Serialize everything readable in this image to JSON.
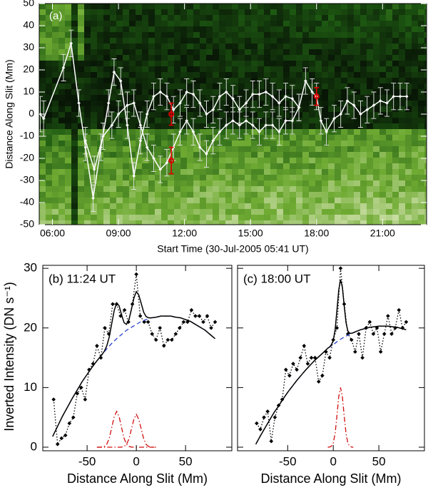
{
  "chart_data": [
    {
      "type": "line",
      "annotation": "(a)",
      "x_label": "Start Time (30-Jul-2005 05:41 UT)",
      "y_label": "Distance Along Slit (Mm)",
      "xlim": [
        5.4,
        23.0
      ],
      "ylim": [
        -50,
        50
      ],
      "xticks": [
        {
          "value": 6,
          "label": "06:00"
        },
        {
          "value": 9,
          "label": "09:00"
        },
        {
          "value": 12,
          "label": "12:00"
        },
        {
          "value": 15,
          "label": "15:00"
        },
        {
          "value": 18,
          "label": "18:00"
        },
        {
          "value": 21,
          "label": "21:00"
        }
      ],
      "yticks": [
        -50,
        -40,
        -30,
        -20,
        -10,
        0,
        10,
        20,
        30,
        40,
        50
      ],
      "series": [
        {
          "color": "#ffffff",
          "marker": "diamond",
          "line": "solid",
          "x": [
            5.45,
            5.6,
            6.5,
            6.85,
            7.2,
            7.5,
            7.85,
            8.2,
            8.55,
            8.8,
            9.1,
            9.4,
            9.7,
            10.0,
            10.3,
            10.6,
            10.9,
            11.2,
            11.5,
            11.8,
            12.1,
            12.4,
            12.7,
            13.0,
            13.3,
            13.6,
            13.9,
            14.2,
            14.5,
            14.8,
            15.1,
            15.4,
            15.7,
            16.0,
            16.3,
            16.6,
            16.9,
            17.2,
            17.5,
            17.8,
            18.0,
            18.2,
            18.45,
            18.8,
            19.1,
            19.4,
            19.7,
            20.0,
            20.3,
            20.6,
            20.9,
            21.2,
            21.5,
            21.8,
            22.1
          ],
          "values": [
            0,
            -2,
            21,
            32,
            5,
            -15,
            -38,
            -15,
            5,
            19,
            15,
            -5,
            -28,
            -12,
            0,
            8,
            10,
            8,
            2,
            5,
            10,
            9,
            5,
            0,
            2,
            8,
            10,
            7,
            2,
            5,
            9,
            9,
            10,
            8,
            5,
            8,
            7,
            3,
            15,
            10,
            8,
            -3,
            -8,
            -2,
            0,
            6,
            4,
            0,
            2,
            4,
            6,
            5,
            8,
            8,
            8
          ],
          "errors": [
            8,
            8,
            6,
            6,
            6,
            6,
            6,
            6,
            6,
            6,
            6,
            6,
            6,
            6,
            6,
            6,
            6,
            6,
            6,
            6,
            6,
            6,
            6,
            6,
            6,
            6,
            6,
            6,
            6,
            6,
            6,
            6,
            6,
            6,
            6,
            6,
            6,
            6,
            6,
            6,
            6,
            6,
            6,
            6,
            6,
            6,
            6,
            6,
            6,
            6,
            6,
            6,
            6,
            6,
            6
          ]
        },
        {
          "color": "#ffffff",
          "marker": "diamond",
          "line": "solid",
          "x": [
            7.5,
            7.9,
            8.3,
            8.7,
            9.0,
            9.4,
            9.7,
            10.0,
            10.3,
            10.6,
            10.9,
            11.2,
            11.5,
            11.8,
            12.1,
            12.4,
            12.7,
            13.0,
            13.3,
            13.6,
            13.9,
            14.2,
            14.5,
            14.8,
            15.1,
            15.4,
            15.7,
            16.0,
            16.3,
            16.6,
            16.9,
            17.2
          ],
          "values": [
            -12,
            -25,
            -10,
            -5,
            0,
            4,
            5,
            -5,
            -15,
            -20,
            -25,
            -22,
            -15,
            -8,
            -3,
            -8,
            -15,
            -18,
            -12,
            -8,
            -5,
            -3,
            -5,
            -3,
            -5,
            -8,
            -5,
            -5,
            -8,
            -3,
            -3,
            3
          ],
          "errors": [
            6,
            6,
            6,
            6,
            6,
            6,
            6,
            6,
            6,
            6,
            6,
            6,
            6,
            6,
            6,
            6,
            6,
            6,
            6,
            6,
            6,
            6,
            6,
            6,
            6,
            6,
            6,
            6,
            6,
            6,
            6,
            6
          ]
        },
        {
          "color": "#e00000",
          "marker": "circle",
          "line": "none",
          "x": [
            11.4,
            11.4,
            18.0
          ],
          "values": [
            0,
            -21,
            8
          ],
          "errors": [
            5,
            6,
            4
          ]
        }
      ]
    },
    {
      "type": "line",
      "annotation": "(b) 11:24 UT",
      "x_label": "Distance Along Slit (Mm)",
      "y_label": "Inverted Intensity (DN s⁻¹)",
      "xlim": [
        -95,
        97
      ],
      "ylim": [
        -0.6,
        30.5
      ],
      "xticks": [
        -50,
        0,
        50
      ],
      "yticks": [
        0,
        10,
        20,
        30
      ],
      "series": [
        {
          "color": "#000000",
          "marker": "diamond",
          "line": "dotted",
          "x": [
            -84,
            -80,
            -76,
            -72,
            -68,
            -64,
            -60,
            -56,
            -52,
            -48,
            -44,
            -40,
            -36,
            -32,
            -28,
            -24,
            -20,
            -16,
            -12,
            -8,
            -4,
            0,
            4,
            8,
            12,
            16,
            20,
            24,
            28,
            32,
            36,
            40,
            44,
            48,
            52,
            56,
            60,
            64,
            68,
            72,
            76,
            80
          ],
          "values": [
            8,
            0.5,
            1.5,
            2,
            4,
            5,
            9,
            10,
            8,
            13,
            14,
            17,
            15,
            20,
            19,
            24,
            24,
            22,
            23,
            21,
            24,
            29,
            22,
            21,
            21,
            19,
            18,
            20,
            17,
            18,
            18,
            19,
            20,
            21,
            21,
            23,
            22,
            22,
            21,
            22,
            20,
            21
          ]
        },
        {
          "color": "#2a3fd0",
          "line": "dashed",
          "x": [
            -85,
            -80,
            -75,
            -70,
            -65,
            -60,
            -55,
            -50,
            -45,
            -40,
            -35,
            -30,
            -25,
            -20,
            -15,
            -10,
            -5,
            0,
            5,
            10,
            15,
            20,
            25,
            30,
            35,
            40,
            45,
            50,
            55,
            60,
            65,
            70,
            75,
            80
          ],
          "values": [
            1.8,
            3.5,
            5.2,
            6.7,
            8.2,
            9.6,
            11.0,
            12.2,
            13.4,
            14.5,
            15.5,
            16.5,
            17.4,
            18.2,
            18.9,
            19.6,
            20.1,
            20.6,
            21.1,
            21.4,
            21.7,
            21.8,
            22.0,
            22.0,
            22.0,
            21.8,
            21.7,
            21.4,
            21.1,
            20.6,
            20.1,
            19.6,
            18.9,
            18.2
          ]
        },
        {
          "color": "#000000",
          "line": "solid",
          "x": [
            -85,
            -80,
            -75,
            -70,
            -65,
            -60,
            -55,
            -50,
            -45,
            -40,
            -37.5,
            -35,
            -32.5,
            -30,
            -27.5,
            -25,
            -22.5,
            -20,
            -17.5,
            -15,
            -12.5,
            -10,
            -7.5,
            -5,
            -2.5,
            0,
            2.5,
            5,
            7.5,
            10,
            12.5,
            15,
            17.5,
            20,
            25,
            30,
            35,
            40,
            45,
            50,
            55,
            60,
            65,
            70,
            75,
            80
          ],
          "values": [
            1.8,
            3.5,
            5.2,
            6.7,
            8.2,
            9.6,
            11.0,
            12.2,
            13.4,
            14.5,
            15.0,
            15.5,
            16.1,
            17.0,
            18.5,
            20.7,
            22.9,
            24.2,
            23.7,
            22.2,
            20.9,
            20.6,
            21.4,
            23.1,
            25.0,
            26.1,
            25.5,
            24.1,
            22.6,
            21.9,
            21.7,
            21.7,
            21.75,
            21.8,
            22.0,
            22.0,
            22.0,
            21.8,
            21.7,
            21.4,
            21.1,
            20.6,
            20.1,
            19.6,
            18.9,
            18.2
          ]
        },
        {
          "color": "#d01010",
          "line": "dashdot",
          "x": [
            -40,
            -37.5,
            -35,
            -32.5,
            -30,
            -27.5,
            -25,
            -22.5,
            -20,
            -17.5,
            -15,
            -12.5,
            -10,
            -7.5,
            -5,
            -2.5,
            0,
            2.5,
            5,
            7.5,
            10,
            12.5,
            15,
            17.5,
            20
          ],
          "values": [
            0,
            0,
            0.02,
            0.13,
            0.51,
            1.5,
            3.29,
            5.1,
            6,
            5.1,
            3.29,
            1.5,
            0.51,
            0.13,
            0.02,
            0,
            0,
            0,
            0,
            0,
            0,
            0,
            0,
            0,
            0
          ]
        },
        {
          "color": "#d01010",
          "line": "dashdot",
          "x": [
            -40,
            -37.5,
            -35,
            -32.5,
            -30,
            -27.5,
            -25,
            -22.5,
            -20,
            -17.5,
            -15,
            -12.5,
            -10,
            -7.5,
            -5,
            -2.5,
            0,
            2.5,
            5,
            7.5,
            10,
            12.5,
            15,
            17.5,
            20
          ],
          "values": [
            0,
            0,
            0,
            0,
            0,
            0,
            0,
            0,
            0,
            0,
            0.02,
            0.12,
            0.47,
            1.38,
            3.02,
            4.67,
            5.5,
            4.67,
            3.02,
            1.38,
            0.47,
            0.12,
            0.02,
            0,
            0
          ]
        }
      ]
    },
    {
      "type": "line",
      "annotation": "(c) 18:00 UT",
      "x_label": "Distance Along Slit (Mm)",
      "xlim": [
        -105,
        100
      ],
      "ylim": [
        -0.6,
        30.5
      ],
      "xticks": [
        -50,
        0,
        50
      ],
      "series": [
        {
          "color": "#000000",
          "marker": "diamond",
          "line": "dotted",
          "x": [
            -84,
            -80,
            -76,
            -72,
            -68,
            -64,
            -60,
            -56,
            -52,
            -48,
            -44,
            -40,
            -36,
            -32,
            -28,
            -24,
            -20,
            -16,
            -12,
            -8,
            -4,
            0,
            4,
            8,
            12,
            16,
            20,
            24,
            28,
            32,
            36,
            40,
            44,
            48,
            52,
            56,
            60,
            64,
            68,
            72,
            76,
            80
          ],
          "values": [
            4,
            3,
            5,
            6,
            1,
            5,
            7,
            8,
            13,
            12,
            14,
            13,
            15,
            17,
            14,
            15,
            15,
            11,
            12,
            16,
            15,
            18,
            20,
            30,
            24,
            19,
            18,
            16,
            19,
            15,
            20,
            21,
            19,
            20,
            16,
            19,
            22,
            19,
            20,
            23,
            20,
            21
          ]
        },
        {
          "color": "#2a3fd0",
          "line": "dashed",
          "x": [
            -85,
            -80,
            -75,
            -70,
            -65,
            -60,
            -55,
            -50,
            -45,
            -40,
            -35,
            -30,
            -25,
            -20,
            -15,
            -10,
            -5,
            0,
            5,
            10,
            15,
            20,
            25,
            30,
            35,
            40,
            45,
            50,
            55,
            60,
            65,
            70,
            75,
            80
          ],
          "values": [
            0.5,
            1.9,
            3.2,
            4.5,
            5.8,
            6.9,
            8.1,
            9.2,
            10.2,
            11.2,
            12.1,
            13.0,
            13.8,
            14.6,
            15.3,
            16.0,
            16.7,
            17.2,
            17.8,
            18.3,
            18.7,
            19.1,
            19.4,
            19.7,
            19.9,
            20.1,
            20.2,
            20.3,
            20.3,
            20.3,
            20.2,
            20.1,
            19.9,
            19.7
          ]
        },
        {
          "color": "#000000",
          "line": "solid",
          "x": [
            -85,
            -80,
            -75,
            -70,
            -65,
            -60,
            -55,
            -50,
            -45,
            -40,
            -35,
            -30,
            -25,
            -20,
            -15,
            -10,
            -6,
            -4,
            -2,
            0,
            2,
            4,
            6,
            8,
            10,
            12,
            14,
            16,
            18,
            20,
            22,
            25,
            30,
            35,
            40,
            45,
            50,
            55,
            60,
            65,
            70,
            75,
            80
          ],
          "values": [
            0.5,
            1.9,
            3.2,
            4.5,
            5.8,
            6.9,
            8.1,
            9.2,
            10.2,
            11.2,
            12.1,
            13.0,
            13.8,
            14.6,
            15.3,
            16.0,
            16.6,
            16.8,
            17.2,
            17.9,
            19.7,
            22.9,
            26.4,
            28.1,
            26.8,
            23.7,
            20.9,
            19.5,
            19.1,
            19.1,
            19.2,
            19.4,
            19.7,
            19.9,
            20.1,
            20.2,
            20.3,
            20.3,
            20.3,
            20.2,
            20.1,
            19.9,
            19.7
          ]
        },
        {
          "color": "#d01010",
          "line": "dashdot",
          "x": [
            -6,
            -4,
            -2,
            0,
            2,
            4,
            6,
            8,
            10,
            12,
            14,
            16,
            18,
            20,
            22
          ],
          "values": [
            0,
            0.03,
            0.17,
            0.73,
            2.3,
            5.2,
            8.49,
            10,
            8.49,
            5.2,
            2.3,
            0.73,
            0.17,
            0.03,
            0
          ]
        }
      ]
    }
  ]
}
